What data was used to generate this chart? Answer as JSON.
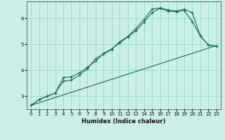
{
  "xlabel": "Humidex (Indice chaleur)",
  "bg_color": "#cceee8",
  "grid_color": "#99ddcc",
  "line_color": "#1a6b5a",
  "xlim": [
    -0.5,
    23.5
  ],
  "ylim": [
    2.5,
    6.65
  ],
  "xticks": [
    0,
    1,
    2,
    3,
    4,
    5,
    6,
    7,
    8,
    9,
    10,
    11,
    12,
    13,
    14,
    15,
    16,
    17,
    18,
    19,
    20,
    21,
    22,
    23
  ],
  "yticks": [
    3,
    4,
    5,
    6
  ],
  "line1_x": [
    0,
    1,
    2,
    3,
    4,
    5,
    6,
    7,
    8,
    9,
    10,
    11,
    12,
    13,
    14,
    15,
    16,
    17,
    18,
    19,
    20,
    21,
    22,
    23
  ],
  "line1_y": [
    2.65,
    2.87,
    3.0,
    3.12,
    3.58,
    3.62,
    3.82,
    4.05,
    4.45,
    4.62,
    4.8,
    5.1,
    5.3,
    5.6,
    5.95,
    6.35,
    6.4,
    6.32,
    6.28,
    6.35,
    6.22,
    5.32,
    4.97,
    4.92
  ],
  "line2_x": [
    0,
    1,
    2,
    3,
    4,
    5,
    6,
    7,
    8,
    9,
    10,
    11,
    12,
    13,
    14,
    15,
    16,
    17,
    18,
    19,
    20,
    21,
    22,
    23
  ],
  "line2_y": [
    2.65,
    2.87,
    3.0,
    3.12,
    3.72,
    3.75,
    3.9,
    4.12,
    4.35,
    4.65,
    4.82,
    5.05,
    5.28,
    5.52,
    5.85,
    6.22,
    6.38,
    6.28,
    6.25,
    6.3,
    5.88,
    5.32,
    4.97,
    4.92
  ],
  "line3_x": [
    0,
    23
  ],
  "line3_y": [
    2.65,
    4.95
  ]
}
